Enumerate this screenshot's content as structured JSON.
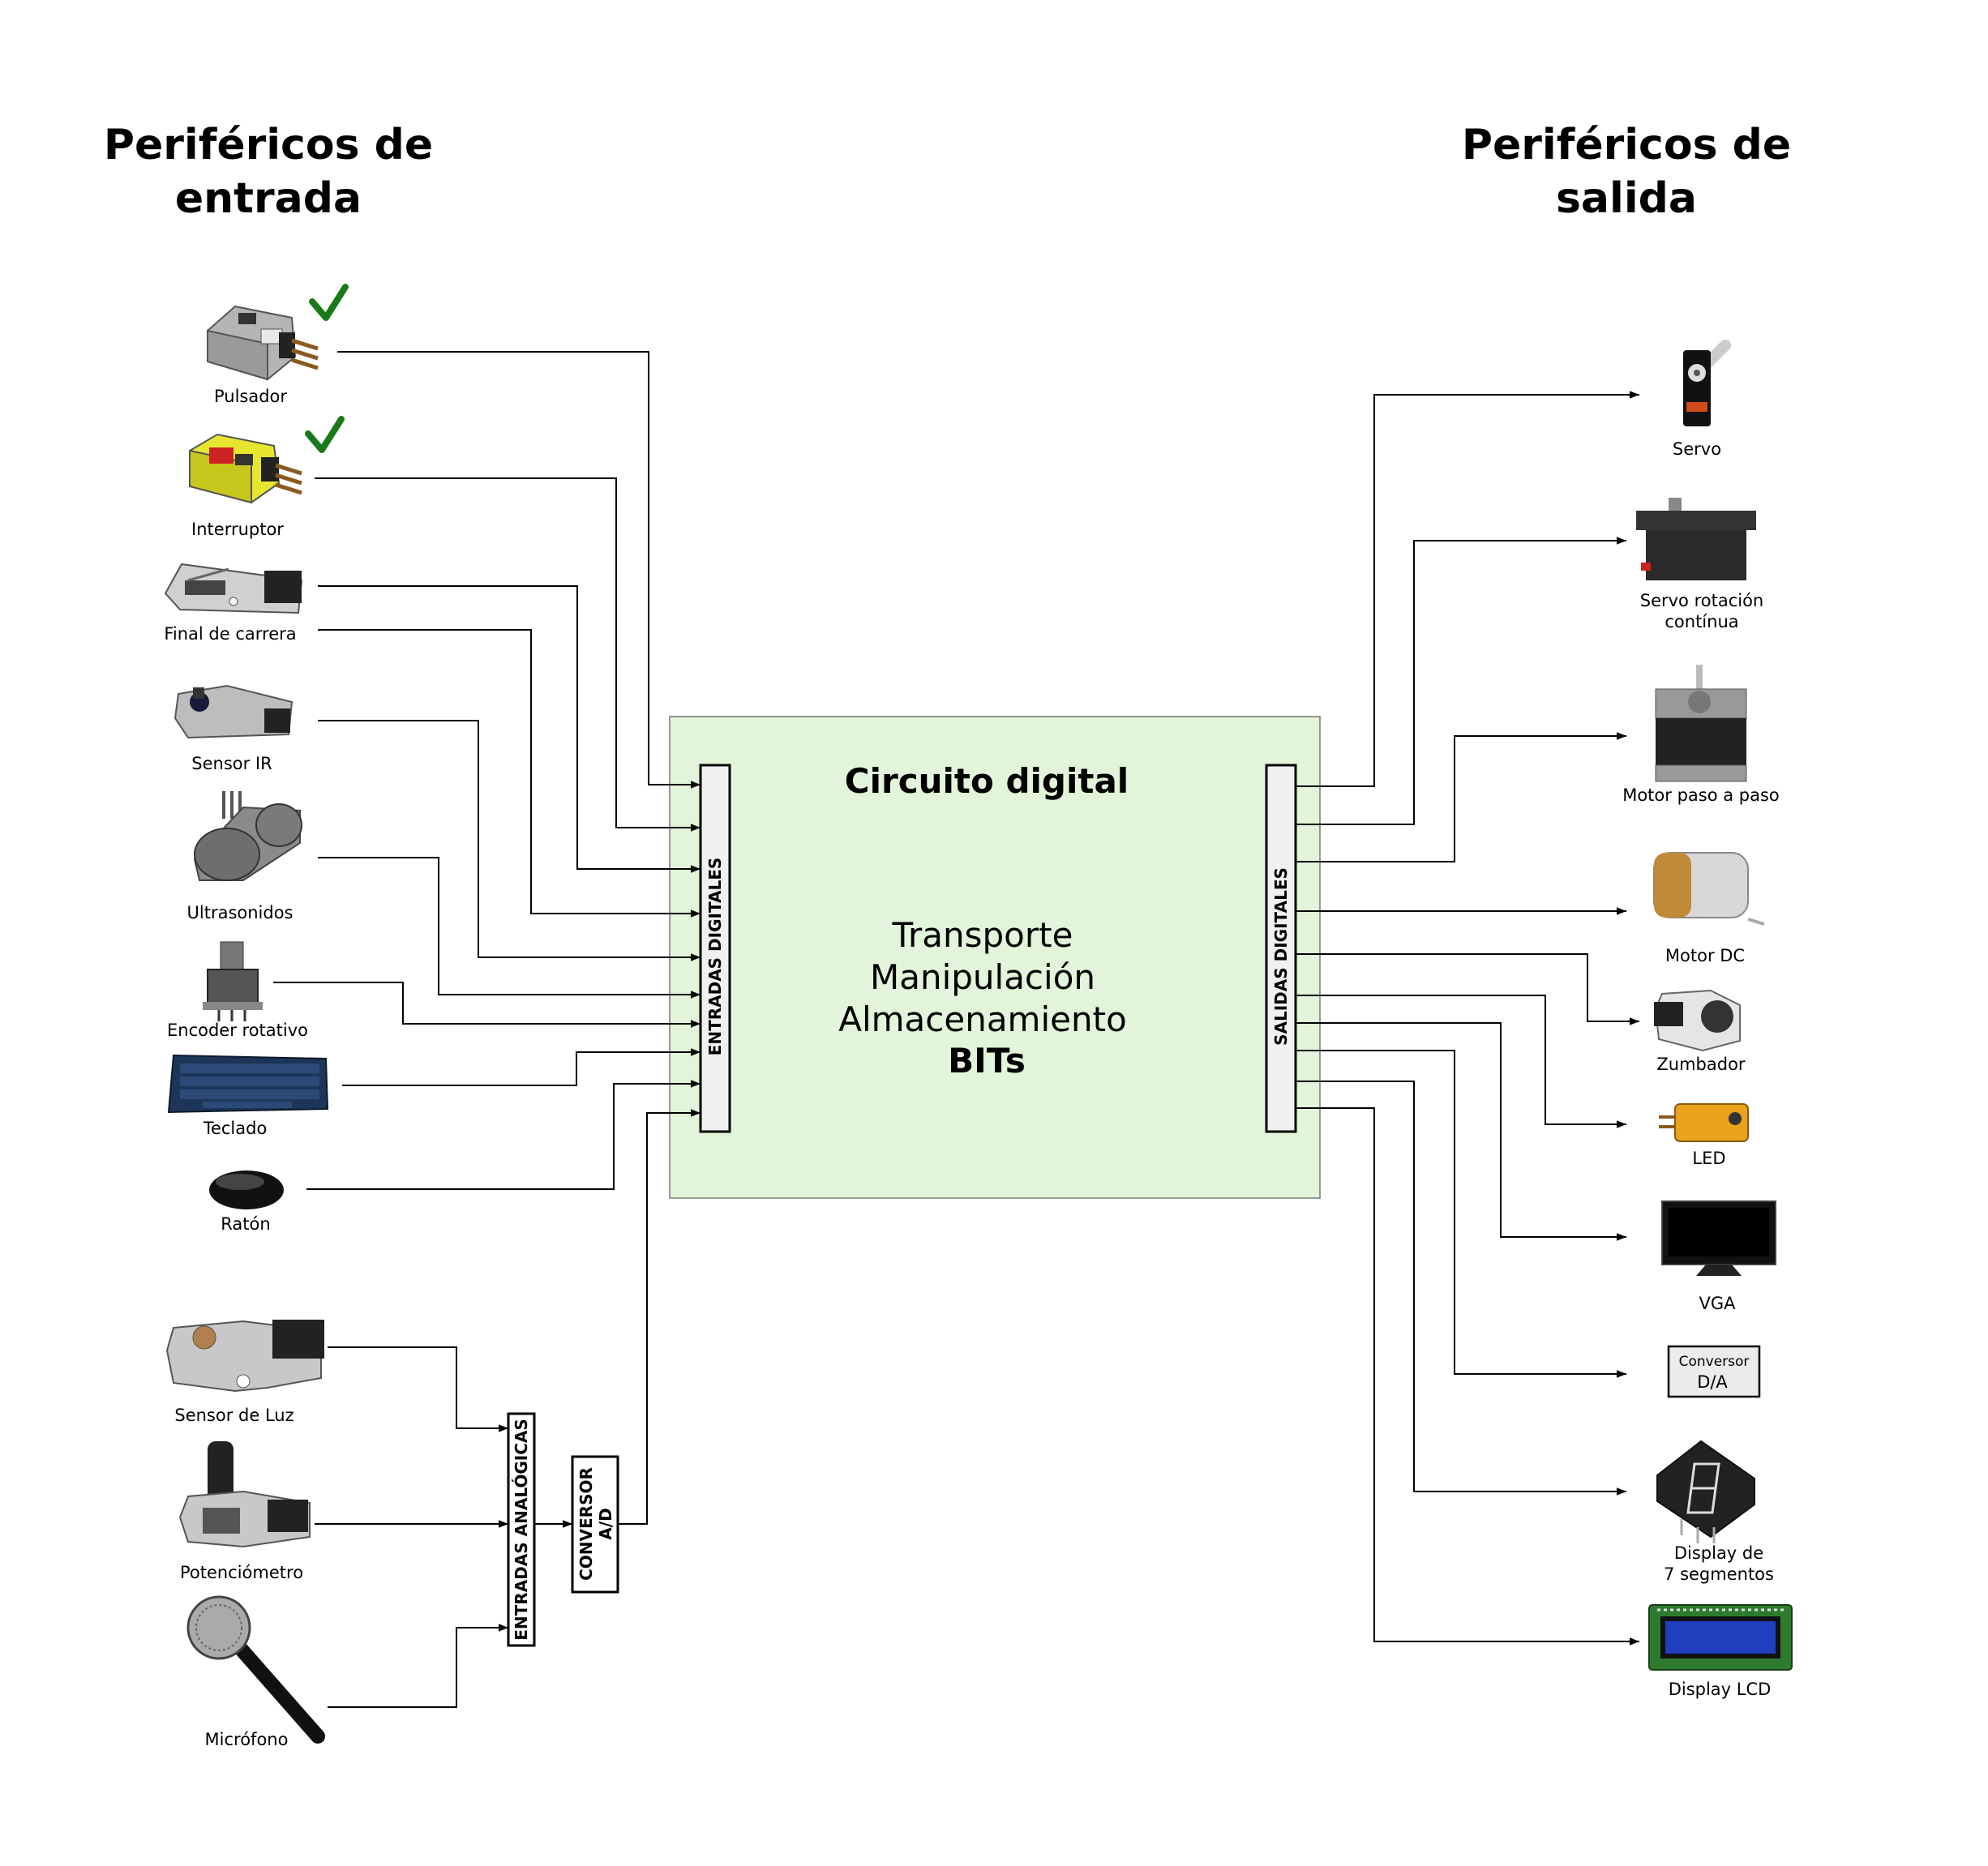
{
  "titles": {
    "input": [
      "Periféricos de",
      "entrada"
    ],
    "output": [
      "Periféricos de",
      "salida"
    ]
  },
  "core": {
    "title": "Circuito digital",
    "lines": [
      "Transporte",
      "Manipulación",
      "Almacenamiento"
    ],
    "bold_line": "BITs",
    "background": "#e2f4d9"
  },
  "buses": {
    "digital_in": "ENTRADAS DIGITALES",
    "digital_out": "SALIDAS DIGITALES",
    "analog_in": "ENTRADAS ANALÓGICAS",
    "converter": [
      "CONVERSOR",
      "A/D"
    ]
  },
  "inputs_digital": [
    "Pulsador",
    "Interruptor",
    "Final de carrera",
    "Sensor IR",
    "Ultrasonidos",
    "Encoder rotativo",
    "Teclado",
    "Ratón"
  ],
  "inputs_analog": [
    "Sensor de Luz",
    "Potenciómetro",
    "Micrófono"
  ],
  "outputs": {
    "servo": [
      "Servo"
    ],
    "servo_cont": [
      "Servo rotación",
      "contínua"
    ],
    "stepper": [
      "Motor paso a paso"
    ],
    "dc": [
      "Motor DC"
    ],
    "buzzer": [
      "Zumbador"
    ],
    "led": [
      "LED"
    ],
    "vga": [
      "VGA"
    ],
    "da_box": [
      "Conversor",
      "D/A"
    ],
    "seg7": [
      "Display de",
      "7 segmentos"
    ],
    "lcd": [
      "Display LCD"
    ]
  },
  "icons": [
    "check-icon",
    "push-button-module-icon",
    "switch-module-icon",
    "limit-switch-icon",
    "ir-sensor-icon",
    "ultrasonic-sensor-icon",
    "rotary-encoder-icon",
    "keyboard-icon",
    "mouse-icon",
    "light-sensor-icon",
    "potentiometer-icon",
    "microphone-icon",
    "servo-icon",
    "continuous-servo-icon",
    "stepper-motor-icon",
    "dc-motor-icon",
    "buzzer-icon",
    "led-module-icon",
    "monitor-icon",
    "seven-segment-icon",
    "lcd-display-icon"
  ],
  "colors": {
    "check": "#1a7a1a",
    "keyboard": "#1c3558",
    "lcd_screen": "#1f3fbf",
    "led_board": "#e8a21c",
    "switch_yellow": "#e6e630"
  }
}
